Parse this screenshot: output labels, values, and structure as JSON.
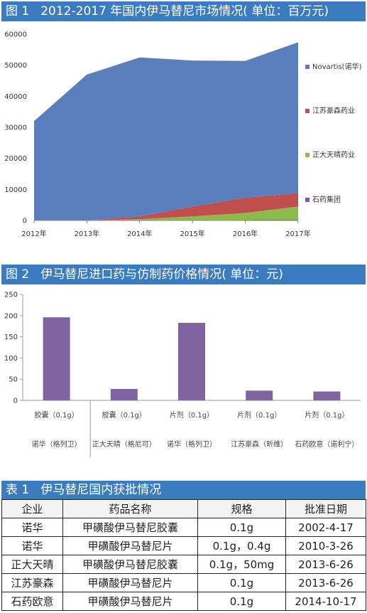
{
  "figure1": {
    "number": "图 1",
    "title": "2012-2017 年国内伊马替尼市场情况( 单位：百万元)"
  },
  "figure2": {
    "number": "图 2",
    "title": "伊马替尼进口药与仿制药价格情况( 单位：元)"
  },
  "table1": {
    "number": "表 1",
    "title": "伊马替尼国内获批情况",
    "headers": [
      "企业",
      "药品名称",
      "规格",
      "批准日期"
    ],
    "rows": [
      [
        "诺华",
        "甲磺酸伊马替尼胶囊",
        "0.1g",
        "2002-4-17"
      ],
      [
        "诺华",
        "甲磺酸伊马替尼片",
        "0.1g，0.4g",
        "2010-3-26"
      ],
      [
        "正大天晴",
        "甲磺酸伊马替尼胶囊",
        "0.1g，50mg",
        "2013-6-26"
      ],
      [
        "江苏豪森",
        "甲磺酸伊马替尼片",
        "0.1g",
        "2013-6-26"
      ],
      [
        "石药欧意",
        "甲磺酸伊马替尼片",
        "0.1g",
        "2014-10-17"
      ]
    ]
  },
  "chart_data": [
    {
      "type": "area",
      "stacked": true,
      "categories": [
        "2012年",
        "2013年",
        "2014年",
        "2015年",
        "2016年",
        "2017年"
      ],
      "ylim": [
        0,
        60000
      ],
      "yticks": [
        0,
        10000,
        20000,
        30000,
        40000,
        50000,
        60000
      ],
      "grid": false,
      "legend_position": "right",
      "series": [
        {
          "name": "石药集团",
          "color": "#7b5aa6",
          "values": [
            0,
            0,
            0,
            100,
            200,
            300
          ]
        },
        {
          "name": "正大天晴药业",
          "color": "#8bbb4a",
          "values": [
            0,
            0,
            400,
            1200,
            2200,
            4200
          ]
        },
        {
          "name": "江苏豪森药业",
          "color": "#c0504d",
          "values": [
            0,
            0,
            900,
            3200,
            5000,
            4300
          ]
        },
        {
          "name": "Novartis(诺华)",
          "color": "#5b7fbd",
          "values": [
            32000,
            47000,
            51200,
            47000,
            44000,
            48600
          ]
        }
      ]
    },
    {
      "type": "bar",
      "ylim": [
        0,
        250
      ],
      "yticks": [
        0,
        50,
        100,
        150,
        200,
        250
      ],
      "grid": false,
      "bar_color": "#8064a2",
      "categories": [
        {
          "product": "胶囊（0.1g）",
          "company": "诺华（格列卫）"
        },
        {
          "product": "胶囊（0.1g）",
          "company": "正大天晴（格尼可）"
        },
        {
          "product": "片剂（0.1g）",
          "company": "诺华（格列卫）"
        },
        {
          "product": "片剂（0.1g）",
          "company": "江苏豪森（昕维）"
        },
        {
          "product": "片剂（0.1g）",
          "company": "石药欧意（诺利宁）"
        }
      ],
      "values": [
        196,
        27,
        183,
        23,
        21
      ]
    }
  ]
}
